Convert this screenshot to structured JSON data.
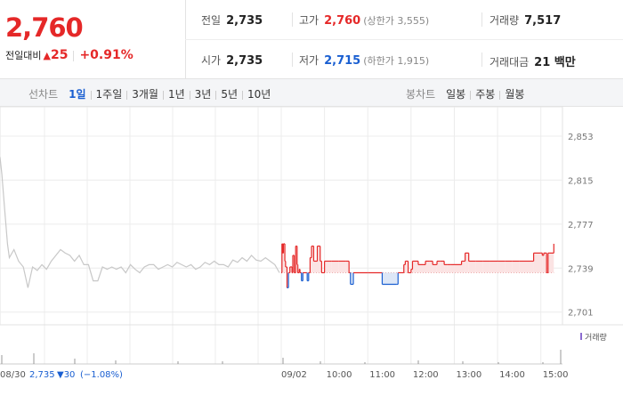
{
  "quote": {
    "price": "2,760",
    "change_label": "전일대비",
    "change_amount": "25",
    "change_pct": "+0.91%"
  },
  "stats": {
    "prev_close": {
      "label": "전일",
      "value": "2,735"
    },
    "open": {
      "label": "시가",
      "value": "2,735"
    },
    "high": {
      "label": "고가",
      "value": "2,760",
      "sub": "(상한가 3,555)"
    },
    "low": {
      "label": "저가",
      "value": "2,715",
      "sub": "(하한가 1,915)"
    },
    "volume": {
      "label": "거래량",
      "value": "7,517"
    },
    "amount": {
      "label": "거래대금",
      "value": "21 백만"
    }
  },
  "toolbar": {
    "line_label": "선차트",
    "line_periods": [
      "1일",
      "1주일",
      "3개월",
      "1년",
      "3년",
      "5년",
      "10년"
    ],
    "active_period": "1일",
    "candle_label": "봉차트",
    "candle_periods": [
      "일봉",
      "주봉",
      "월봉"
    ]
  },
  "chart_data": {
    "type": "line",
    "y_ticks": [
      "2,853",
      "2,815",
      "2,777",
      "2,739",
      "2,701"
    ],
    "ylim": [
      2690,
      2863
    ],
    "reference_value": 2735,
    "prev_day": {
      "date": "08/30",
      "close": "2,735",
      "change": "▼30",
      "change_pct": "(−1.08%)",
      "x": [
        0,
        0.2,
        0.5,
        0.8,
        1.0,
        1.5,
        2,
        2.5,
        3,
        3.5,
        4,
        4.5,
        5,
        5.5,
        6,
        6.5,
        7,
        7.5,
        8,
        8.5,
        9,
        9.5,
        10,
        10.5,
        11,
        11.5,
        12,
        12.5,
        13,
        13.5,
        14,
        14.5,
        15,
        15.5,
        16,
        16.5,
        17,
        17.5,
        18,
        18.5,
        19,
        19.5,
        20,
        20.5,
        21,
        21.5,
        22,
        22.5,
        23,
        23.5,
        24,
        24.5,
        25,
        25.5,
        26,
        26.5,
        27,
        27.5,
        28,
        28.5,
        29,
        29.5,
        30
      ],
      "values": [
        2835,
        2820,
        2790,
        2760,
        2748,
        2755,
        2745,
        2740,
        2722,
        2740,
        2737,
        2742,
        2738,
        2745,
        2750,
        2755,
        2752,
        2750,
        2745,
        2750,
        2742,
        2742,
        2728,
        2728,
        2740,
        2738,
        2740,
        2738,
        2740,
        2735,
        2742,
        2738,
        2735,
        2740,
        2742,
        2742,
        2738,
        2740,
        2742,
        2740,
        2744,
        2742,
        2740,
        2742,
        2738,
        2740,
        2744,
        2742,
        2745,
        2742,
        2742,
        2740,
        2746,
        2744,
        2748,
        2745,
        2750,
        2746,
        2745,
        2748,
        2745,
        2742,
        2735
      ]
    },
    "today": {
      "date": "09/02",
      "time_ticks": [
        "10:00",
        "11:00",
        "12:00",
        "13:00",
        "14:00",
        "15:00"
      ],
      "time_tick_minutes": [
        600,
        660,
        720,
        780,
        840,
        900
      ],
      "minutes": [
        540,
        541,
        542,
        543,
        545,
        546,
        548,
        550,
        552,
        555,
        556,
        558,
        560,
        562,
        563,
        565,
        566,
        568,
        570,
        575,
        576,
        578,
        580,
        582,
        585,
        590,
        594,
        596,
        600,
        610,
        620,
        630,
        634,
        636,
        640,
        660,
        680,
        700,
        702,
        706,
        710,
        712,
        716,
        720,
        722,
        730,
        740,
        746,
        750,
        755,
        756,
        760,
        766,
        770,
        775,
        780,
        785,
        790,
        795,
        800,
        810,
        820,
        830,
        840,
        850,
        860,
        870,
        880,
        890,
        900,
        902,
        904,
        908,
        910,
        912,
        918
      ],
      "values": [
        2735,
        2760,
        2752,
        2760,
        2745,
        2740,
        2722,
        2735,
        2740,
        2735,
        2750,
        2735,
        2758,
        2742,
        2735,
        2738,
        2735,
        2728,
        2735,
        2735,
        2728,
        2735,
        2748,
        2758,
        2745,
        2758,
        2745,
        2735,
        2745,
        2745,
        2745,
        2745,
        2735,
        2725,
        2735,
        2735,
        2725,
        2725,
        2735,
        2735,
        2742,
        2745,
        2735,
        2738,
        2745,
        2742,
        2745,
        2745,
        2742,
        2742,
        2745,
        2745,
        2742,
        2742,
        2742,
        2742,
        2742,
        2745,
        2752,
        2745,
        2745,
        2745,
        2745,
        2745,
        2745,
        2745,
        2745,
        2745,
        2752,
        2752,
        2750,
        2752,
        2735,
        2752,
        2752,
        2760
      ]
    },
    "volume_label": "거래량"
  },
  "colors": {
    "up": "#e52828",
    "down": "#1a5fd1",
    "prev_line": "#c8c8c8",
    "up_fill": "#fbe3e3",
    "down_fill": "#dde7f7"
  }
}
